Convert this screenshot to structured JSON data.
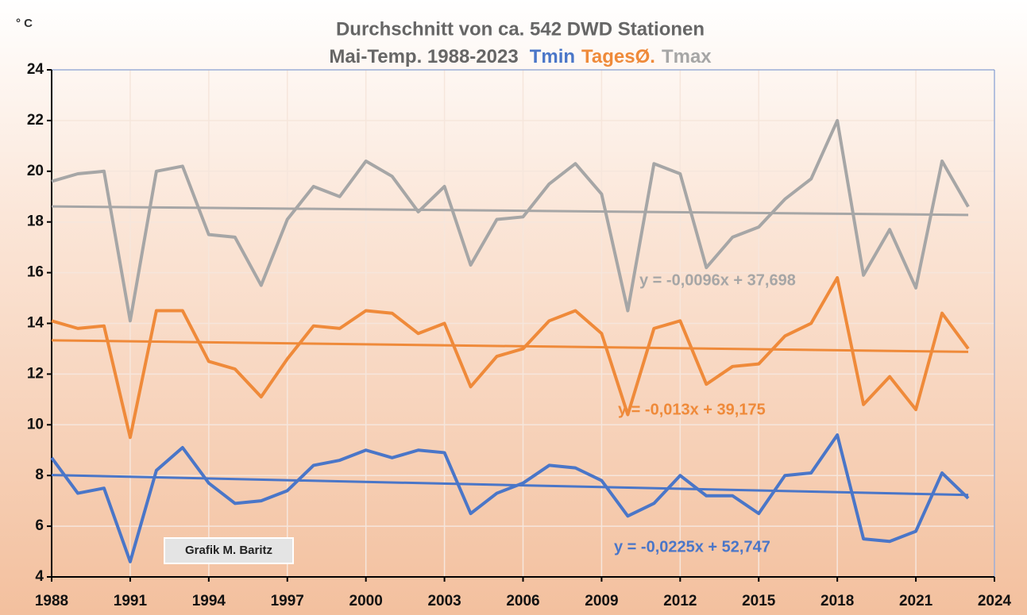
{
  "chart_data": {
    "type": "line",
    "title": "Durchschnitt von ca. 542 DWD Stationen",
    "subtitle": "Mai-Temp. 1988-2023",
    "y_unit": "° C",
    "annotation": "Grafik M. Baritz",
    "x": [
      1988,
      1989,
      1990,
      1991,
      1992,
      1993,
      1994,
      1995,
      1996,
      1997,
      1998,
      1999,
      2000,
      2001,
      2002,
      2003,
      2004,
      2005,
      2006,
      2007,
      2008,
      2009,
      2010,
      2011,
      2012,
      2013,
      2014,
      2015,
      2016,
      2017,
      2018,
      2019,
      2020,
      2021,
      2022,
      2023
    ],
    "series": [
      {
        "name": "Tmin",
        "color": "#4a76c8",
        "values": [
          8.7,
          7.3,
          7.5,
          4.6,
          8.2,
          9.1,
          7.7,
          6.9,
          7.0,
          7.4,
          8.4,
          8.6,
          9.0,
          8.7,
          9.0,
          8.9,
          6.5,
          7.3,
          7.7,
          8.4,
          8.3,
          7.8,
          6.4,
          6.9,
          8.0,
          7.2,
          7.2,
          6.5,
          8.0,
          8.1,
          9.6,
          5.5,
          5.4,
          5.8,
          8.1,
          7.1
        ],
        "trendline": {
          "label": "y = -0,0225x + 52,747",
          "x": [
            1988,
            2023
          ],
          "values": [
            8.017,
            7.23
          ]
        }
      },
      {
        "name": "TagesØ.",
        "color": "#ef8a3a",
        "values": [
          14.1,
          13.8,
          13.9,
          9.5,
          14.5,
          14.5,
          12.5,
          12.2,
          11.1,
          12.6,
          13.9,
          13.8,
          14.5,
          14.4,
          13.6,
          14.0,
          11.5,
          12.7,
          13.0,
          14.1,
          14.5,
          13.6,
          10.4,
          13.8,
          14.1,
          11.6,
          12.3,
          12.4,
          13.5,
          14.0,
          15.8,
          10.8,
          11.9,
          10.6,
          14.4,
          13.0
        ],
        "trendline": {
          "label": "y = -0,013x + 39,175",
          "x": [
            1988,
            2023
          ],
          "values": [
            13.331,
            12.876
          ]
        }
      },
      {
        "name": "Tmax",
        "color": "#a6a6a6",
        "values": [
          19.6,
          19.9,
          20.0,
          14.1,
          20.0,
          20.2,
          17.5,
          17.4,
          15.5,
          18.1,
          19.4,
          19.0,
          20.4,
          19.8,
          18.4,
          19.4,
          16.3,
          18.1,
          18.2,
          19.5,
          20.3,
          19.1,
          14.5,
          20.3,
          19.9,
          16.2,
          17.4,
          17.8,
          18.9,
          19.7,
          22.0,
          15.9,
          17.7,
          15.4,
          20.4,
          18.6
        ],
        "trendline": {
          "label": "y = -0,0096x + 37,698",
          "x": [
            1988,
            2023
          ],
          "values": [
            18.613,
            18.277
          ]
        }
      }
    ],
    "xlim": [
      1988,
      2024
    ],
    "xticks": [
      1988,
      1991,
      1994,
      1997,
      2000,
      2003,
      2006,
      2009,
      2012,
      2015,
      2018,
      2021,
      2024
    ],
    "ylim": [
      4,
      24
    ],
    "yticks": [
      4,
      6,
      8,
      10,
      12,
      14,
      16,
      18,
      20,
      22,
      24
    ],
    "grid": true
  }
}
